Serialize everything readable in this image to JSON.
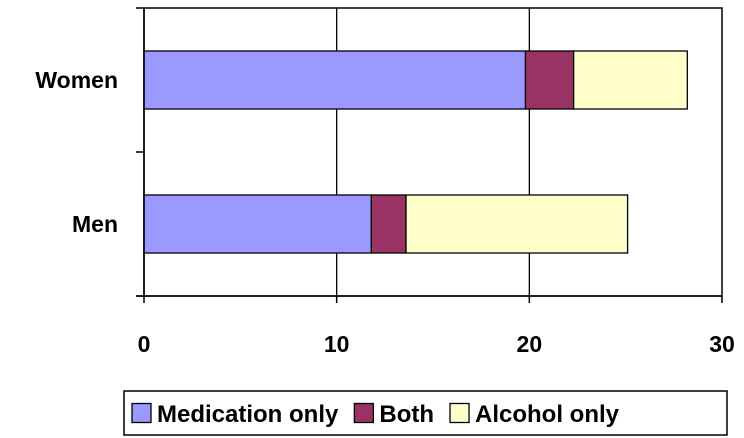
{
  "chart_data": {
    "type": "bar",
    "orientation": "horizontal",
    "stacked": true,
    "categories": [
      "Women",
      "Men"
    ],
    "series": [
      {
        "name": "Medication only",
        "values": [
          19.8,
          11.8
        ],
        "color": "#9999FF"
      },
      {
        "name": "Both",
        "values": [
          2.5,
          1.8
        ],
        "color": "#993366"
      },
      {
        "name": "Alcohol only",
        "values": [
          5.9,
          11.5
        ],
        "color": "#FFFFCC"
      }
    ],
    "xlim": [
      0,
      30
    ],
    "x_ticks": [
      0,
      10,
      20,
      30
    ],
    "grid": "vertical",
    "legend": "bottom"
  }
}
